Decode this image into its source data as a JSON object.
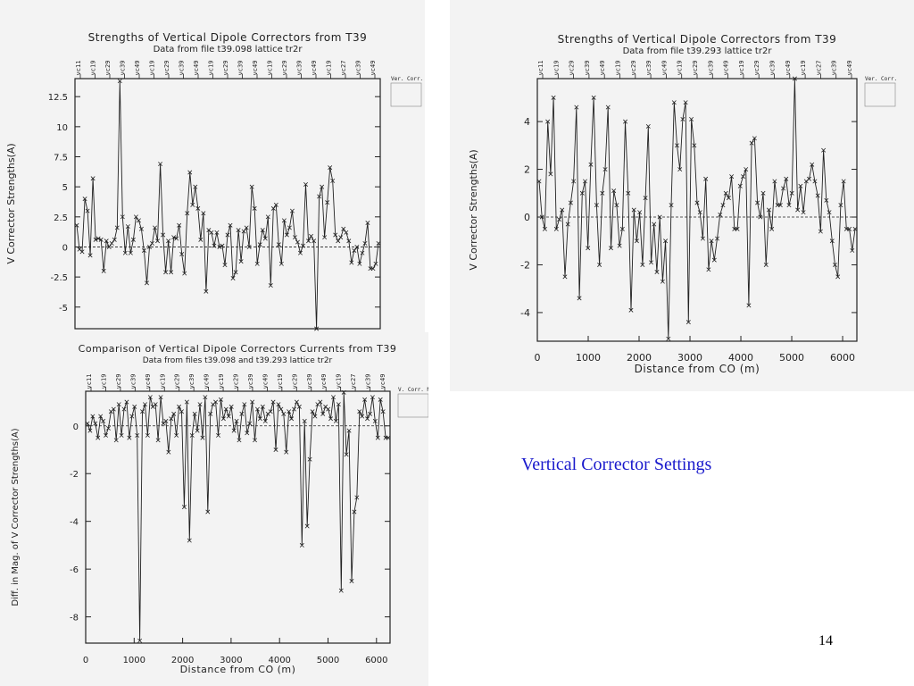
{
  "slide": {
    "caption": "Vertical Corrector Settings",
    "page_number": "14",
    "caption_color": "#1a1acc"
  },
  "chart_data": [
    {
      "type": "line",
      "title": "Strengths of Vertical Dipole Correctors from T39",
      "subtitle": "Data from file t39.098 lattice tr2r",
      "xlabel": "",
      "ylabel": "V Corrector Strengths(A)",
      "ylim": [
        -6.8,
        14
      ],
      "xlim": [
        0,
        6280
      ],
      "yticks": [
        "12.5",
        "10",
        "7.5",
        "5",
        "2.5",
        "0",
        "-2.5",
        "-5"
      ],
      "xticks": [],
      "top_labels": [
        "vc11",
        "vc19",
        "vc29",
        "vc39",
        "vc49",
        "vc19",
        "vc29",
        "vc39",
        "vc49",
        "vc19",
        "vc29",
        "vc39",
        "vc49",
        "vc19",
        "vc29",
        "vc39",
        "vc49",
        "vc19",
        "vc27",
        "vc39",
        "vc49"
      ],
      "legend_text": "Ver. Corr.",
      "legend_placement": "top-right",
      "zero_line": "dashed",
      "grid": false,
      "series": [
        {
          "values": [
            1.8,
            -0.2,
            -0.4,
            4.0,
            3.0,
            -0.7,
            5.7,
            0.6,
            0.7,
            0.6,
            -2.0,
            0.5,
            0.0,
            0.3,
            0.6,
            1.6,
            13.8,
            2.5,
            -0.5,
            1.7,
            -0.5,
            0.6,
            2.5,
            2.2,
            1.5,
            -0.3,
            -3.0,
            0.0,
            0.3,
            1.6,
            0.5,
            6.9,
            1.0,
            -2.1,
            0.5,
            -2.1,
            0.8,
            0.7,
            1.8,
            -0.6,
            -2.2,
            2.8,
            6.2,
            3.5,
            5.0,
            3.2,
            0.6,
            2.8,
            -3.7,
            1.4,
            1.2,
            0.1,
            1.2,
            0.0,
            0.1,
            -1.5,
            1.0,
            1.8,
            -2.6,
            -2.1,
            1.4,
            -1.2,
            1.3,
            1.6,
            0.0,
            5.0,
            3.2,
            -1.4,
            0.2,
            1.4,
            0.7,
            2.5,
            -3.2,
            3.2,
            3.5,
            0.2,
            -1.4,
            2.2,
            1.0,
            1.6,
            3.0,
            0.8,
            0.4,
            -0.5,
            0.1,
            5.2,
            0.5,
            0.9,
            0.5,
            -6.8,
            4.2,
            5.0,
            0.8,
            3.7,
            6.6,
            5.5,
            1.0,
            0.5,
            0.8,
            1.5,
            1.2,
            0.5,
            -1.3,
            -0.3,
            0.0,
            -1.4,
            -0.5,
            0.3,
            2.0,
            -1.8,
            -1.8,
            -1.4,
            0.3
          ]
        }
      ]
    },
    {
      "type": "line",
      "title": "Strengths of Vertical Dipole Correctors from T39",
      "subtitle": "Data from file t39.293 lattice tr2r",
      "xlabel": "Distance from CO (m)",
      "ylabel": "V Corrector Strengths(A)",
      "ylim": [
        -5.2,
        5.8
      ],
      "xlim": [
        0,
        6280
      ],
      "yticks": [
        "4",
        "2",
        "0",
        "-2",
        "-4"
      ],
      "xticks": [
        "0",
        "1000",
        "2000",
        "3000",
        "4000",
        "5000",
        "6000"
      ],
      "top_labels": [
        "vc11",
        "vc19",
        "vc29",
        "vc39",
        "vc49",
        "vc19",
        "vc29",
        "vc39",
        "vc49",
        "vc19",
        "vc29",
        "vc39",
        "vc49",
        "vc19",
        "vc29",
        "vc39",
        "vc49",
        "vc19",
        "vc27",
        "vc39",
        "vc49"
      ],
      "legend_text": "Ver. Corr.",
      "legend_placement": "top-right",
      "zero_line": "dashed",
      "grid": false,
      "series": [
        {
          "values": [
            1.5,
            0.0,
            -0.5,
            4.0,
            1.8,
            5.0,
            -0.5,
            -0.1,
            0.3,
            -2.5,
            -0.3,
            0.6,
            1.5,
            4.6,
            -3.4,
            1.0,
            1.5,
            -1.3,
            2.2,
            5.0,
            0.5,
            -2.0,
            1.0,
            2.0,
            4.6,
            -1.3,
            1.1,
            0.5,
            -1.2,
            -0.5,
            4.0,
            1.0,
            -3.9,
            0.3,
            -1.0,
            0.2,
            -2.0,
            0.8,
            3.8,
            -1.9,
            -0.3,
            -2.3,
            0.0,
            -2.7,
            -1.0,
            -5.1,
            0.5,
            4.8,
            3.0,
            2.0,
            4.1,
            4.8,
            -4.4,
            4.1,
            3.0,
            0.6,
            0.2,
            -0.9,
            1.6,
            -2.2,
            -1.0,
            -1.8,
            -0.9,
            0.1,
            0.5,
            1.0,
            0.8,
            1.7,
            -0.5,
            -0.5,
            1.3,
            1.7,
            2.0,
            -3.7,
            3.1,
            3.3,
            0.6,
            0.0,
            1.0,
            -2.0,
            0.3,
            -0.5,
            1.5,
            0.5,
            0.5,
            1.2,
            1.6,
            0.5,
            1.0,
            5.8,
            0.3,
            1.3,
            0.2,
            1.5,
            1.6,
            2.2,
            1.5,
            0.9,
            -0.6,
            2.8,
            0.7,
            0.2,
            -1.0,
            -2.0,
            -2.5,
            0.5,
            1.5,
            -0.5,
            -0.5,
            -1.4,
            -0.5
          ]
        }
      ]
    },
    {
      "type": "line",
      "title": "Comparison of Vertical Dipole Correctors Currents from T39",
      "subtitle": "Data from files t39.098 and t39.293 lattice tr2r",
      "xlabel": "Distance from CO (m)",
      "ylabel": "Diff. in Mag. of V Corrector Strengths(A)",
      "ylim": [
        -9.1,
        1.45
      ],
      "xlim": [
        0,
        6280
      ],
      "yticks": [
        "0",
        "-2",
        "-4",
        "-6",
        "-8"
      ],
      "xticks": [
        "0",
        "1000",
        "2000",
        "3000",
        "4000",
        "5000",
        "6000"
      ],
      "top_labels": [
        "vc11",
        "vc19",
        "vc29",
        "vc39",
        "vc49",
        "vc19",
        "vc29",
        "vc39",
        "vc49",
        "vc19",
        "vc29",
        "vc39",
        "vc49",
        "vc19",
        "vc29",
        "vc39",
        "vc49",
        "vc19",
        "vc27",
        "vc39",
        "vc49"
      ],
      "legend_text": "V. Corr. Mag.",
      "legend_placement": "top-right",
      "zero_line": "dashed",
      "grid": false,
      "series": [
        {
          "values": [
            0.1,
            -0.2,
            0.4,
            0.1,
            -0.5,
            0.4,
            0.2,
            -0.4,
            -0.1,
            0.6,
            0.7,
            -0.6,
            0.9,
            -0.4,
            0.7,
            1.0,
            -0.5,
            0.4,
            0.8,
            -0.4,
            -9.0,
            0.6,
            0.9,
            -0.4,
            1.2,
            0.8,
            0.9,
            -0.6,
            1.2,
            0.1,
            0.2,
            -1.1,
            0.3,
            0.5,
            -0.4,
            0.8,
            0.6,
            -3.4,
            1.0,
            -4.8,
            -0.4,
            0.5,
            -0.2,
            0.9,
            -0.5,
            1.2,
            -3.6,
            0.5,
            0.9,
            1.0,
            -0.4,
            1.1,
            0.3,
            0.7,
            0.4,
            0.8,
            -0.2,
            0.2,
            -0.6,
            0.5,
            0.9,
            -0.3,
            0.1,
            1.0,
            -0.6,
            0.7,
            0.3,
            0.8,
            0.2,
            0.5,
            0.6,
            1.0,
            -1.0,
            0.9,
            0.7,
            0.5,
            -1.1,
            0.6,
            0.3,
            0.7,
            1.0,
            0.8,
            -5.0,
            0.2,
            -4.2,
            -1.4,
            0.6,
            0.4,
            0.9,
            1.0,
            0.5,
            0.8,
            0.7,
            0.3,
            1.2,
            0.2,
            0.9,
            -6.9,
            1.4,
            -1.2,
            -0.2,
            -6.5,
            -3.6,
            -3.0,
            0.6,
            0.4,
            1.1,
            0.3,
            0.5,
            1.2,
            0.2,
            -0.5,
            1.1,
            0.6,
            -0.5,
            -0.5
          ]
        }
      ]
    }
  ]
}
